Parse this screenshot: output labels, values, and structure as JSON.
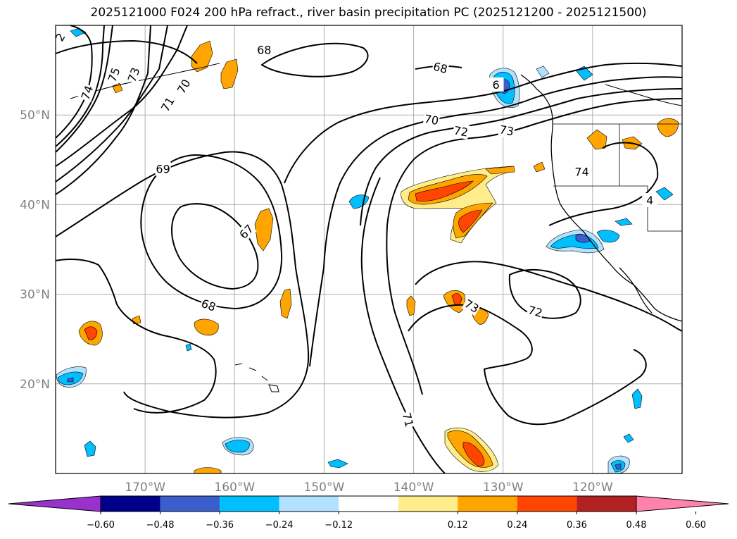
{
  "title": "2025121000 F024 200 hPa refract., river basin precipitation PC (2025121200 - 2025121500)",
  "map": {
    "lon_range": [
      -180,
      -110
    ],
    "lat_range": [
      10,
      60
    ],
    "lat_ticks": [
      {
        "value": 20,
        "label": "20°N"
      },
      {
        "value": 30,
        "label": "30°N"
      },
      {
        "value": 40,
        "label": "40°N"
      },
      {
        "value": 50,
        "label": "50°N"
      }
    ],
    "lon_ticks": [
      {
        "value": -170,
        "label": "170°W"
      },
      {
        "value": -160,
        "label": "160°W"
      },
      {
        "value": -150,
        "label": "150°W"
      },
      {
        "value": -140,
        "label": "140°W"
      },
      {
        "value": -130,
        "label": "130°W"
      },
      {
        "value": -120,
        "label": "120°W"
      }
    ],
    "contour_labels": [
      {
        "text": "75",
        "lon": -173.5,
        "lat": 54.5,
        "rot": -70
      },
      {
        "text": "74",
        "lon": -176.5,
        "lat": 52.5,
        "rot": -70
      },
      {
        "text": "73",
        "lon": -171.3,
        "lat": 54.5,
        "rot": -70
      },
      {
        "text": "70",
        "lon": -165.7,
        "lat": 53.2,
        "rot": -60
      },
      {
        "text": "71",
        "lon": -167.5,
        "lat": 51.2,
        "rot": -60
      },
      {
        "text": "69",
        "lon": -168.0,
        "lat": 44.0,
        "rot": 0
      },
      {
        "text": "68",
        "lon": -156.7,
        "lat": 57.3,
        "rot": 0
      },
      {
        "text": "67",
        "lon": -158.7,
        "lat": 37.0,
        "rot": -45
      },
      {
        "text": "68",
        "lon": -162.9,
        "lat": 28.8,
        "rot": 20
      },
      {
        "text": "68",
        "lon": -137.0,
        "lat": 55.3,
        "rot": 15
      },
      {
        "text": "70",
        "lon": -138.0,
        "lat": 49.5,
        "rot": 10
      },
      {
        "text": "72",
        "lon": -134.7,
        "lat": 48.2,
        "rot": 10
      },
      {
        "text": "73",
        "lon": -129.6,
        "lat": 48.3,
        "rot": 10
      },
      {
        "text": "74",
        "lon": -121.2,
        "lat": 43.7,
        "rot": 0
      },
      {
        "text": "73",
        "lon": -133.5,
        "lat": 28.7,
        "rot": 30
      },
      {
        "text": "72",
        "lon": -126.4,
        "lat": 28.1,
        "rot": 15
      },
      {
        "text": "71",
        "lon": -140.6,
        "lat": 16.0,
        "rot": 75
      },
      {
        "text": "2",
        "lon": -179.5,
        "lat": 58.7,
        "rot": -60
      },
      {
        "text": "6",
        "lon": -130.8,
        "lat": 53.4,
        "rot": 0
      },
      {
        "text": "4",
        "lon": -113.6,
        "lat": 40.5,
        "rot": 0
      }
    ]
  },
  "colorbar": {
    "colors": [
      "#9932cc",
      "#00008b",
      "#3a5fcd",
      "#00bfff",
      "#b0e2ff",
      "#ffffff",
      "#ffec8b",
      "#ffa500",
      "#ff4500",
      "#b22222",
      "#ff82ab"
    ],
    "tick_values": [
      -0.6,
      -0.48,
      -0.36,
      -0.24,
      -0.12,
      0.12,
      0.24,
      0.36,
      0.48,
      0.6
    ],
    "tick_labels": [
      "−0.60",
      "−0.48",
      "−0.36",
      "−0.24",
      "−0.12",
      "0.12",
      "0.24",
      "0.36",
      "0.48",
      "0.60"
    ]
  }
}
